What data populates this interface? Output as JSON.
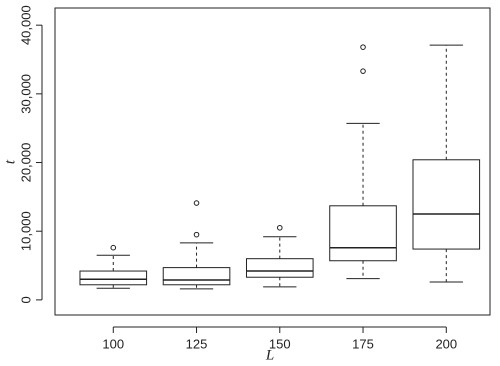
{
  "chart_data": {
    "type": "box",
    "x_label": "L",
    "y_label": "t",
    "categories": [
      "100",
      "125",
      "150",
      "175",
      "200"
    ],
    "boxes": [
      {
        "whislo": 1700,
        "q1": 2200,
        "med": 3000,
        "q3": 4200,
        "whishi": 6500,
        "fliers": [
          7600
        ]
      },
      {
        "whislo": 1600,
        "q1": 2200,
        "med": 2900,
        "q3": 4700,
        "whishi": 8300,
        "fliers": [
          9500,
          14100
        ]
      },
      {
        "whislo": 1900,
        "q1": 3300,
        "med": 4200,
        "q3": 6000,
        "whishi": 9200,
        "fliers": [
          10500
        ]
      },
      {
        "whislo": 3100,
        "q1": 5700,
        "med": 7600,
        "q3": 13700,
        "whishi": 25700,
        "fliers": [
          33300,
          36800
        ]
      },
      {
        "whislo": 2600,
        "q1": 7400,
        "med": 12500,
        "q3": 20400,
        "whishi": 37100,
        "fliers": []
      }
    ],
    "color": "#222222",
    "ylim": [
      -2200,
      42500
    ],
    "yticks": [
      0,
      {
        "value": 10000,
        "label": "10,000"
      },
      {
        "value": 20000,
        "label": "20,000"
      },
      {
        "value": 30000,
        "label": "30,000"
      },
      {
        "value": 40000,
        "label": "40,000"
      }
    ]
  }
}
